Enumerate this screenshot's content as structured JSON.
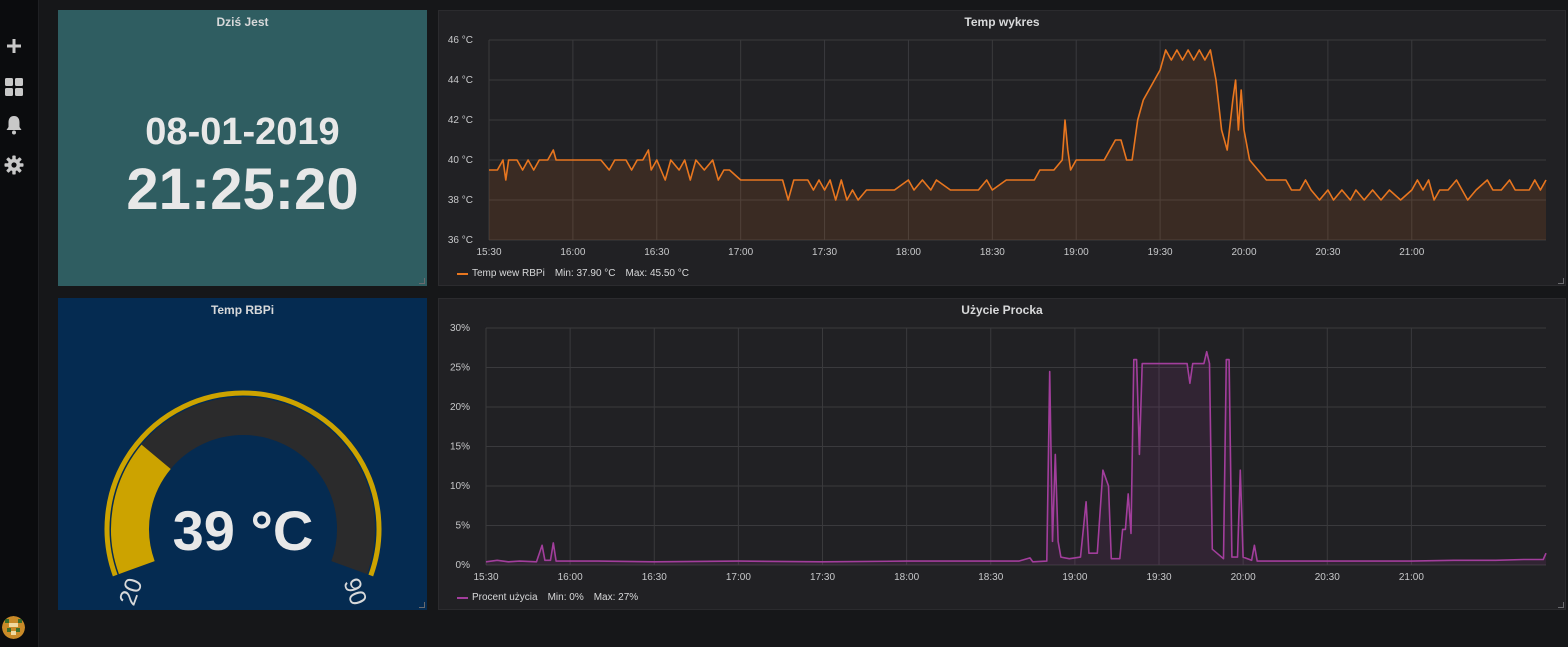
{
  "sidebar": {
    "items": [
      {
        "icon": "plus-icon",
        "label": "Create"
      },
      {
        "icon": "dashboards-icon",
        "label": "Dashboards"
      },
      {
        "icon": "bell-icon",
        "label": "Alerting"
      },
      {
        "icon": "gear-icon",
        "label": "Configuration"
      }
    ]
  },
  "clock_panel": {
    "title": "Dziś Jest",
    "date": "08-01-2019",
    "time": "21:25:20",
    "background": "#2f5d61"
  },
  "gauge_panel": {
    "title": "Temp RBPi",
    "value": 39,
    "value_text": "39 °C",
    "min": 20,
    "max": 90,
    "min_label": "20",
    "max_label": "90",
    "threshold": 40,
    "colors": {
      "background": "#052b51",
      "fill": "#cca300",
      "track": "#2b2b2c",
      "outer": "#cca300"
    }
  },
  "temp_panel": {
    "title": "Temp wykres",
    "legend": {
      "name": "Temp wew RBPi",
      "min": "Min: 37.90 °C",
      "max": "Max: 45.50 °C",
      "color": "#e8761f"
    }
  },
  "cpu_panel": {
    "title": "Użycie Procka",
    "legend": {
      "name": "Procent użycia",
      "min": "Min: 0%",
      "max": "Max: 27%",
      "color": "#a23e9c"
    }
  },
  "chart_data": [
    {
      "type": "line",
      "title": "Temp wykres",
      "series": [
        {
          "name": "Temp wew RBPi",
          "color": "#e8761f"
        }
      ],
      "x_range": [
        "15:30",
        "21:48"
      ],
      "x_ticks": [
        "15:30",
        "16:00",
        "16:30",
        "17:00",
        "17:30",
        "18:00",
        "18:30",
        "19:00",
        "19:30",
        "20:00",
        "20:30",
        "21:00"
      ],
      "ylim": [
        36,
        46
      ],
      "y_ticks": [
        "36 °C",
        "38 °C",
        "40 °C",
        "42 °C",
        "44 °C",
        "46 °C"
      ],
      "points": [
        [
          "15:30",
          39.5
        ],
        [
          "15:33",
          39.5
        ],
        [
          "15:35",
          40.0
        ],
        [
          "15:36",
          39.0
        ],
        [
          "15:37",
          40.0
        ],
        [
          "15:40",
          40.0
        ],
        [
          "15:42",
          39.5
        ],
        [
          "15:44",
          40.0
        ],
        [
          "15:46",
          39.5
        ],
        [
          "15:48",
          40.0
        ],
        [
          "15:51",
          40.0
        ],
        [
          "15:53",
          40.5
        ],
        [
          "15:54",
          40.0
        ],
        [
          "16:00",
          40.0
        ],
        [
          "16:10",
          40.0
        ],
        [
          "16:13",
          39.5
        ],
        [
          "16:15",
          40.0
        ],
        [
          "16:19",
          40.0
        ],
        [
          "16:21",
          39.5
        ],
        [
          "16:23",
          40.0
        ],
        [
          "16:25",
          40.0
        ],
        [
          "16:27",
          40.5
        ],
        [
          "16:28",
          39.5
        ],
        [
          "16:30",
          40.0
        ],
        [
          "16:33",
          39.0
        ],
        [
          "16:35",
          40.0
        ],
        [
          "16:38",
          39.5
        ],
        [
          "16:40",
          40.0
        ],
        [
          "16:42",
          39.0
        ],
        [
          "16:44",
          40.0
        ],
        [
          "16:47",
          39.5
        ],
        [
          "16:50",
          40.0
        ],
        [
          "16:52",
          39.0
        ],
        [
          "16:54",
          39.5
        ],
        [
          "16:56",
          39.5
        ],
        [
          "17:00",
          39.0
        ],
        [
          "17:15",
          39.0
        ],
        [
          "17:17",
          38.0
        ],
        [
          "17:19",
          39.0
        ],
        [
          "17:24",
          39.0
        ],
        [
          "17:26",
          38.5
        ],
        [
          "17:28",
          39.0
        ],
        [
          "17:30",
          38.5
        ],
        [
          "17:32",
          39.0
        ],
        [
          "17:34",
          38.0
        ],
        [
          "17:36",
          39.0
        ],
        [
          "17:38",
          38.0
        ],
        [
          "17:40",
          38.5
        ],
        [
          "17:42",
          38.0
        ],
        [
          "17:45",
          38.5
        ],
        [
          "17:50",
          38.5
        ],
        [
          "17:55",
          38.5
        ],
        [
          "18:00",
          39.0
        ],
        [
          "18:02",
          38.5
        ],
        [
          "18:05",
          39.0
        ],
        [
          "18:08",
          38.5
        ],
        [
          "18:10",
          39.0
        ],
        [
          "18:15",
          38.5
        ],
        [
          "18:20",
          38.5
        ],
        [
          "18:25",
          38.5
        ],
        [
          "18:28",
          39.0
        ],
        [
          "18:30",
          38.5
        ],
        [
          "18:35",
          39.0
        ],
        [
          "18:45",
          39.0
        ],
        [
          "18:47",
          39.5
        ],
        [
          "18:52",
          39.5
        ],
        [
          "18:55",
          40.0
        ],
        [
          "18:56",
          42.0
        ],
        [
          "18:57",
          40.5
        ],
        [
          "18:58",
          39.5
        ],
        [
          "19:00",
          40.0
        ],
        [
          "19:10",
          40.0
        ],
        [
          "19:12",
          40.5
        ],
        [
          "19:14",
          41.0
        ],
        [
          "19:16",
          41.0
        ],
        [
          "19:17",
          40.5
        ],
        [
          "19:18",
          40.0
        ],
        [
          "19:20",
          40.0
        ],
        [
          "19:22",
          42.0
        ],
        [
          "19:24",
          43.0
        ],
        [
          "19:26",
          43.5
        ],
        [
          "19:28",
          44.0
        ],
        [
          "19:30",
          44.5
        ],
        [
          "19:32",
          45.5
        ],
        [
          "19:34",
          45.0
        ],
        [
          "19:36",
          45.5
        ],
        [
          "19:38",
          45.0
        ],
        [
          "19:40",
          45.5
        ],
        [
          "19:42",
          45.0
        ],
        [
          "19:44",
          45.5
        ],
        [
          "19:46",
          45.0
        ],
        [
          "19:48",
          45.5
        ],
        [
          "19:50",
          44.0
        ],
        [
          "19:52",
          41.5
        ],
        [
          "19:54",
          40.5
        ],
        [
          "19:56",
          43.0
        ],
        [
          "19:57",
          44.0
        ],
        [
          "19:58",
          41.5
        ],
        [
          "19:59",
          43.5
        ],
        [
          "20:00",
          41.5
        ],
        [
          "20:02",
          40.0
        ],
        [
          "20:05",
          39.5
        ],
        [
          "20:08",
          39.0
        ],
        [
          "20:15",
          39.0
        ],
        [
          "20:17",
          38.5
        ],
        [
          "20:20",
          38.5
        ],
        [
          "20:22",
          39.0
        ],
        [
          "20:24",
          38.5
        ],
        [
          "20:27",
          38.0
        ],
        [
          "20:30",
          38.5
        ],
        [
          "20:32",
          38.0
        ],
        [
          "20:35",
          38.5
        ],
        [
          "20:38",
          38.0
        ],
        [
          "20:40",
          38.5
        ],
        [
          "20:43",
          38.0
        ],
        [
          "20:46",
          38.5
        ],
        [
          "20:49",
          38.0
        ],
        [
          "20:52",
          38.5
        ],
        [
          "20:56",
          38.0
        ],
        [
          "21:00",
          38.5
        ],
        [
          "21:02",
          39.0
        ],
        [
          "21:04",
          38.5
        ],
        [
          "21:06",
          39.0
        ],
        [
          "21:08",
          38.0
        ],
        [
          "21:10",
          38.5
        ],
        [
          "21:13",
          38.5
        ],
        [
          "21:16",
          39.0
        ],
        [
          "21:18",
          38.5
        ],
        [
          "21:20",
          38.0
        ],
        [
          "21:23",
          38.5
        ],
        [
          "21:27",
          39.0
        ],
        [
          "21:29",
          38.5
        ],
        [
          "21:32",
          38.5
        ],
        [
          "21:35",
          39.0
        ],
        [
          "21:37",
          38.5
        ],
        [
          "21:42",
          38.5
        ],
        [
          "21:44",
          39.0
        ],
        [
          "21:46",
          38.5
        ],
        [
          "21:48",
          39.0
        ]
      ]
    },
    {
      "type": "line",
      "title": "Użycie Procka",
      "series": [
        {
          "name": "Procent użycia",
          "color": "#a23e9c"
        }
      ],
      "x_range": [
        "15:30",
        "21:48"
      ],
      "x_ticks": [
        "15:30",
        "16:00",
        "16:30",
        "17:00",
        "17:30",
        "18:00",
        "18:30",
        "19:00",
        "19:30",
        "20:00",
        "20:30",
        "21:00"
      ],
      "ylim": [
        0,
        30
      ],
      "y_ticks": [
        "0%",
        "5%",
        "10%",
        "15%",
        "20%",
        "25%",
        "30%"
      ],
      "points": [
        [
          "15:30",
          0.4
        ],
        [
          "15:34",
          0.6
        ],
        [
          "15:38",
          0.4
        ],
        [
          "15:42",
          0.5
        ],
        [
          "15:48",
          0.4
        ],
        [
          "15:50",
          2.5
        ],
        [
          "15:51",
          0.6
        ],
        [
          "15:53",
          0.6
        ],
        [
          "15:54",
          2.8
        ],
        [
          "15:55",
          0.5
        ],
        [
          "16:10",
          0.5
        ],
        [
          "16:30",
          0.4
        ],
        [
          "17:00",
          0.5
        ],
        [
          "17:30",
          0.4
        ],
        [
          "18:00",
          0.5
        ],
        [
          "18:30",
          0.5
        ],
        [
          "18:40",
          0.5
        ],
        [
          "18:44",
          0.9
        ],
        [
          "18:45",
          0.4
        ],
        [
          "18:50",
          0.5
        ],
        [
          "18:51",
          24.5
        ],
        [
          "18:52",
          3.0
        ],
        [
          "18:53",
          14.0
        ],
        [
          "18:54",
          3.0
        ],
        [
          "18:55",
          1.0
        ],
        [
          "18:58",
          0.8
        ],
        [
          "19:02",
          1.0
        ],
        [
          "19:04",
          8.0
        ],
        [
          "19:05",
          1.5
        ],
        [
          "19:08",
          1.5
        ],
        [
          "19:10",
          12.0
        ],
        [
          "19:12",
          10.0
        ],
        [
          "19:13",
          0.8
        ],
        [
          "19:16",
          0.8
        ],
        [
          "19:17",
          4.5
        ],
        [
          "19:18",
          4.5
        ],
        [
          "19:19",
          9.0
        ],
        [
          "19:20",
          4.0
        ],
        [
          "19:21",
          26.0
        ],
        [
          "19:22",
          26.0
        ],
        [
          "19:23",
          14.0
        ],
        [
          "19:24",
          25.5
        ],
        [
          "19:30",
          25.5
        ],
        [
          "19:40",
          25.5
        ],
        [
          "19:41",
          23.0
        ],
        [
          "19:42",
          25.5
        ],
        [
          "19:46",
          25.5
        ],
        [
          "19:47",
          27.0
        ],
        [
          "19:48",
          25.5
        ],
        [
          "19:49",
          2.0
        ],
        [
          "19:53",
          0.8
        ],
        [
          "19:54",
          26.0
        ],
        [
          "19:55",
          26.0
        ],
        [
          "19:56",
          1.0
        ],
        [
          "19:58",
          1.0
        ],
        [
          "19:59",
          12.0
        ],
        [
          "20:00",
          1.0
        ],
        [
          "20:03",
          0.6
        ],
        [
          "20:04",
          2.5
        ],
        [
          "20:05",
          0.5
        ],
        [
          "20:15",
          0.5
        ],
        [
          "20:30",
          0.5
        ],
        [
          "20:45",
          0.5
        ],
        [
          "21:00",
          0.5
        ],
        [
          "21:15",
          0.6
        ],
        [
          "21:30",
          0.6
        ],
        [
          "21:40",
          0.7
        ],
        [
          "21:47",
          0.7
        ],
        [
          "21:48",
          1.5
        ]
      ]
    }
  ]
}
